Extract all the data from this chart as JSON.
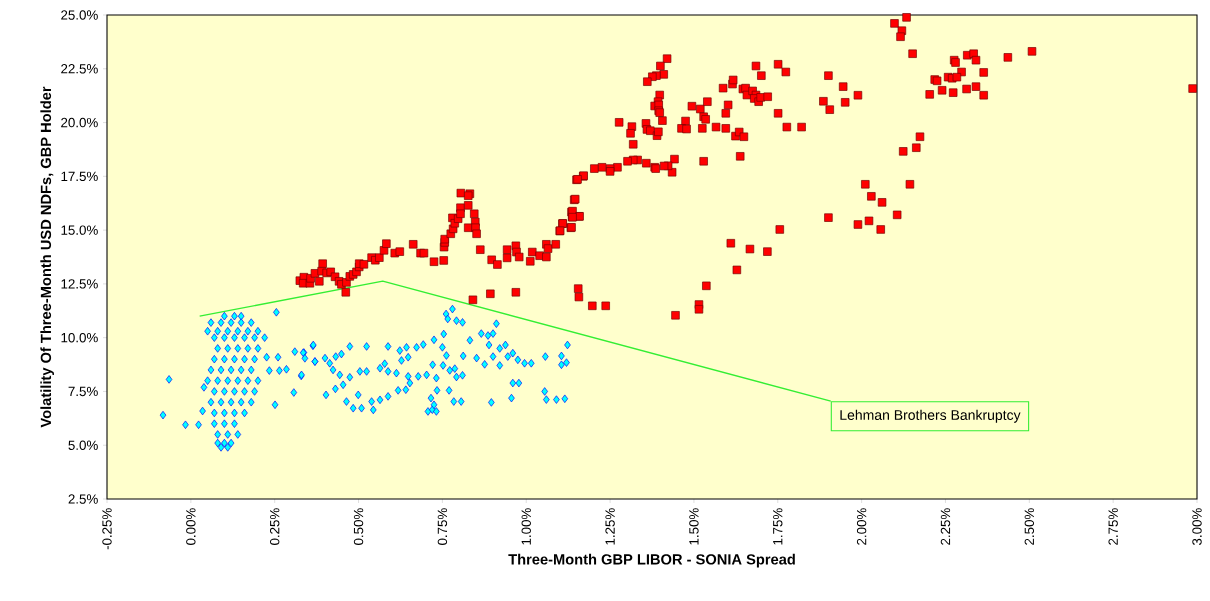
{
  "chart_data": {
    "type": "scatter",
    "xlabel": "Three-Month GBP LIBOR - SONIA Spread",
    "ylabel": "Volatility Of Three-Month USD NDFs, GBP Holder",
    "xlim": [
      -0.25,
      3.0
    ],
    "ylim": [
      2.5,
      25.0
    ],
    "xticks": [
      {
        "value": -0.25,
        "label": "-0.25%"
      },
      {
        "value": 0,
        "label": "0.00%"
      },
      {
        "value": 0.25,
        "label": "0.25%"
      },
      {
        "value": 0.5,
        "label": "0.50%"
      },
      {
        "value": 0.75,
        "label": "0.75%"
      },
      {
        "value": 1.0,
        "label": "1.00%"
      },
      {
        "value": 1.25,
        "label": "1.25%"
      },
      {
        "value": 1.5,
        "label": "1.50%"
      },
      {
        "value": 1.75,
        "label": "1.75%"
      },
      {
        "value": 2.0,
        "label": "2.00%"
      },
      {
        "value": 2.25,
        "label": "2.25%"
      },
      {
        "value": 2.5,
        "label": "2.50%"
      },
      {
        "value": 2.75,
        "label": "2.75%"
      },
      {
        "value": 3.0,
        "label": "3.00%"
      }
    ],
    "yticks": [
      {
        "value": 2.5,
        "label": "2.5%"
      },
      {
        "value": 5.0,
        "label": "5.0%"
      },
      {
        "value": 7.5,
        "label": "7.5%"
      },
      {
        "value": 10.0,
        "label": "10.0%"
      },
      {
        "value": 12.5,
        "label": "12.5%"
      },
      {
        "value": 15.0,
        "label": "15.0%"
      },
      {
        "value": 17.5,
        "label": "17.5%"
      },
      {
        "value": 20.0,
        "label": "20.0%"
      },
      {
        "value": 22.5,
        "label": "22.5%"
      },
      {
        "value": 25.0,
        "label": "25.0%"
      }
    ],
    "annotations": [
      "Lehman Brothers Bankruptcy"
    ],
    "series": [
      {
        "color": "#ff0000",
        "marker": "square",
        "x": [
          0.325,
          0.337,
          0.335,
          0.355,
          0.357,
          0.37,
          0.383,
          0.393,
          0.39,
          0.405,
          0.417,
          0.43,
          0.442,
          0.449,
          0.462,
          0.464,
          0.474,
          0.484,
          0.494,
          0.502,
          0.502,
          0.516,
          0.539,
          0.55,
          0.562,
          0.576,
          0.583,
          0.608,
          0.623,
          0.663,
          0.685,
          0.695,
          0.725,
          0.754,
          0.755,
          0.757,
          0.757,
          0.775,
          0.782,
          0.78,
          0.787,
          0.797,
          0.804,
          0.804,
          0.805,
          0.832,
          0.827,
          0.827,
          0.845,
          0.848,
          0.827,
          0.849,
          0.852,
          0.863,
          0.841,
          0.893,
          0.897,
          0.914,
          0.943,
          0.943,
          0.969,
          0.971,
          0.979,
          0.969,
          1.012,
          1.018,
          1.04,
          1.06,
          1.065,
          1.06,
          1.088,
          1.1,
          1.108,
          1.133,
          1.135,
          1.137,
          1.157,
          1.143,
          1.15,
          1.17,
          1.155,
          1.157,
          1.197,
          1.237,
          1.42,
          1.4,
          1.41,
          1.388,
          1.376,
          1.361,
          1.398,
          1.393,
          1.383,
          1.395,
          1.395,
          1.398,
          1.406,
          1.277,
          1.315,
          1.311,
          1.319,
          1.357,
          1.36,
          1.37,
          1.39,
          1.394,
          1.475,
          1.463,
          1.478,
          1.494,
          1.519,
          1.54,
          1.529,
          1.535,
          1.525,
          1.566,
          1.595,
          1.602,
          1.595,
          1.587,
          1.615,
          1.617,
          1.646,
          1.654,
          1.658,
          1.675,
          1.685,
          1.68,
          1.693,
          1.699,
          1.72,
          1.685,
          1.701,
          1.751,
          1.774,
          1.751,
          1.777,
          1.821,
          1.624,
          1.635,
          1.649,
          1.638,
          1.529,
          1.901,
          1.945,
          1.989,
          1.886,
          1.905,
          1.951,
          1.442,
          1.435,
          1.423,
          1.411,
          1.383,
          1.386,
          1.358,
          1.332,
          1.319,
          1.302,
          1.272,
          1.25,
          1.25,
          1.226,
          1.203,
          1.171,
          1.153,
          1.146,
          1.138,
          1.159,
          1.138,
          1.109,
          1.135,
          1.101,
          1.445,
          1.515,
          1.515,
          1.537,
          1.628,
          1.61,
          1.667,
          1.719,
          1.756,
          1.901,
          1.989,
          2.022,
          2.011,
          2.029,
          2.134,
          2.098,
          2.12,
          2.116,
          2.152,
          2.174,
          2.163,
          2.124,
          2.061,
          2.144,
          2.106,
          2.057,
          2.276,
          2.28,
          2.315,
          2.334,
          2.341,
          2.298,
          2.364,
          2.218,
          2.225,
          2.258,
          2.27,
          2.284,
          2.203,
          2.24,
          2.273,
          2.313,
          2.341,
          2.364,
          2.436,
          2.508,
          2.987
        ],
        "values": [
          12.65,
          12.81,
          12.53,
          12.53,
          12.76,
          12.99,
          12.62,
          13.44,
          13.09,
          13.01,
          13.06,
          12.83,
          12.62,
          12.48,
          12.11,
          12.57,
          12.85,
          12.94,
          13.06,
          13.29,
          13.44,
          13.41,
          13.72,
          13.6,
          13.72,
          14.06,
          14.37,
          13.93,
          14.0,
          14.34,
          13.93,
          13.93,
          13.53,
          13.59,
          14.21,
          14.43,
          14.58,
          14.83,
          15.06,
          15.57,
          15.32,
          15.53,
          16.04,
          15.76,
          16.72,
          16.69,
          16.6,
          16.15,
          15.76,
          15.38,
          15.11,
          15.11,
          14.83,
          14.09,
          11.76,
          12.04,
          13.62,
          13.4,
          14.09,
          13.71,
          14.27,
          13.98,
          13.75,
          12.11,
          13.55,
          13.98,
          13.81,
          14.34,
          14.14,
          13.75,
          14.34,
          14.96,
          15.3,
          15.11,
          15.84,
          15.61,
          15.64,
          16.41,
          17.34,
          17.5,
          12.28,
          11.89,
          11.48,
          11.48,
          22.97,
          22.63,
          22.24,
          22.18,
          22.13,
          21.9,
          21.28,
          20.97,
          20.77,
          20.82,
          20.55,
          20.46,
          20.09,
          20.01,
          19.81,
          19.5,
          18.99,
          19.96,
          19.68,
          19.62,
          19.39,
          19.57,
          20.07,
          19.73,
          19.7,
          20.76,
          20.63,
          20.97,
          20.27,
          20.15,
          19.73,
          19.79,
          19.73,
          20.82,
          20.43,
          21.6,
          21.79,
          21.98,
          21.56,
          21.6,
          21.28,
          21.47,
          21.28,
          21.12,
          20.97,
          21.17,
          21.2,
          22.63,
          22.18,
          22.71,
          22.35,
          20.43,
          19.79,
          19.79,
          19.37,
          19.56,
          19.34,
          18.43,
          18.2,
          22.18,
          21.67,
          21.27,
          20.99,
          20.6,
          20.94,
          18.3,
          17.69,
          17.99,
          17.98,
          17.92,
          17.86,
          18.11,
          18.26,
          18.26,
          18.2,
          17.92,
          17.86,
          17.73,
          17.92,
          17.86,
          17.53,
          17.36,
          16.44,
          15.88,
          15.64,
          15.6,
          15.31,
          15.13,
          14.97,
          11.04,
          11.54,
          11.32,
          12.41,
          13.15,
          14.39,
          14.12,
          14.0,
          15.03,
          15.58,
          15.26,
          15.43,
          17.13,
          16.57,
          24.89,
          24.61,
          24.27,
          23.99,
          23.2,
          19.34,
          18.83,
          18.66,
          16.29,
          17.13,
          15.71,
          15.03,
          22.9,
          22.79,
          23.13,
          23.2,
          22.9,
          22.35,
          22.33,
          22.0,
          21.94,
          22.11,
          22.06,
          22.11,
          21.31,
          21.5,
          21.39,
          21.56,
          21.67,
          21.27,
          23.03,
          23.31,
          21.58
        ]
      },
      {
        "color": "#00ffff",
        "marker": "diamond",
        "x": [
          -0.065,
          -0.083,
          -0.016,
          0.023,
          0.035,
          0.039,
          0.255,
          0.226,
          0.26,
          0.234,
          0.264,
          0.285,
          0.329,
          0.307,
          0.251,
          0.31,
          0.337,
          0.364,
          0.37,
          0.1,
          0.13,
          0.15,
          0.06,
          0.09,
          0.12,
          0.15,
          0.18,
          0.05,
          0.08,
          0.11,
          0.14,
          0.17,
          0.2,
          0.07,
          0.1,
          0.13,
          0.16,
          0.19,
          0.22,
          0.08,
          0.11,
          0.14,
          0.17,
          0.2,
          0.07,
          0.1,
          0.13,
          0.16,
          0.19,
          0.06,
          0.09,
          0.12,
          0.15,
          0.18,
          0.05,
          0.08,
          0.11,
          0.14,
          0.17,
          0.2,
          0.07,
          0.1,
          0.13,
          0.16,
          0.19,
          0.06,
          0.09,
          0.12,
          0.15,
          0.18,
          0.07,
          0.1,
          0.13,
          0.16,
          0.07,
          0.1,
          0.13,
          0.08,
          0.11,
          0.14,
          0.08,
          0.1,
          0.12,
          0.09,
          0.11,
          0.335,
          0.34,
          0.365,
          0.37,
          0.33,
          0.403,
          0.431,
          0.4,
          0.414,
          0.424,
          0.432,
          0.449,
          0.444,
          0.454,
          0.474,
          0.474,
          0.504,
          0.524,
          0.524,
          0.464,
          0.484,
          0.499,
          0.509,
          0.544,
          0.539,
          0.564,
          0.588,
          0.618,
          0.641,
          0.564,
          0.578,
          0.588,
          0.613,
          0.588,
          0.623,
          0.643,
          0.648,
          0.628,
          0.673,
          0.693,
          0.648,
          0.653,
          0.678,
          0.703,
          0.721,
          0.725,
          0.732,
          0.734,
          0.716,
          0.707,
          0.72,
          0.725,
          0.732,
          0.75,
          0.754,
          0.761,
          0.766,
          0.78,
          0.792,
          0.81,
          0.762,
          0.752,
          0.772,
          0.787,
          0.792,
          0.81,
          0.812,
          0.77,
          0.784,
          0.806,
          0.832,
          0.852,
          0.866,
          0.886,
          0.901,
          0.911,
          0.889,
          0.876,
          0.901,
          0.921,
          0.921,
          0.938,
          0.945,
          0.96,
          0.975,
          0.995,
          1.015,
          0.96,
          0.978,
          0.956,
          0.896,
          1.057,
          1.105,
          1.105,
          1.123,
          1.12,
          1.055,
          1.06,
          1.09,
          1.115
        ],
        "values": [
          8.06,
          6.4,
          5.95,
          5.95,
          6.59,
          7.69,
          11.18,
          9.09,
          9.09,
          8.47,
          8.47,
          8.53,
          8.22,
          7.45,
          6.88,
          9.35,
          9.31,
          9.62,
          8.89,
          11.0,
          11.0,
          11.0,
          10.7,
          10.7,
          10.7,
          10.7,
          10.7,
          10.3,
          10.3,
          10.3,
          10.3,
          10.3,
          10.3,
          10.0,
          10.0,
          10.0,
          10.0,
          10.0,
          10.0,
          9.5,
          9.5,
          9.5,
          9.5,
          9.5,
          9.0,
          9.0,
          9.0,
          9.0,
          9.0,
          8.5,
          8.5,
          8.5,
          8.5,
          8.5,
          8.0,
          8.0,
          8.0,
          8.0,
          8.0,
          8.0,
          7.5,
          7.5,
          7.5,
          7.5,
          7.5,
          7.0,
          7.0,
          7.0,
          7.0,
          7.0,
          6.5,
          6.5,
          6.5,
          6.5,
          6.0,
          6.0,
          6.0,
          5.5,
          5.5,
          5.5,
          5.1,
          5.1,
          5.1,
          4.9,
          4.9,
          9.3,
          9.04,
          9.66,
          8.89,
          8.27,
          7.34,
          7.62,
          9.05,
          8.81,
          8.5,
          9.12,
          9.24,
          8.27,
          7.81,
          9.59,
          8.16,
          8.43,
          8.43,
          9.59,
          7.03,
          6.72,
          7.34,
          6.72,
          6.64,
          7.03,
          7.11,
          7.27,
          7.55,
          7.58,
          8.58,
          8.79,
          8.43,
          8.35,
          9.59,
          9.4,
          9.55,
          9.09,
          8.94,
          9.55,
          9.68,
          8.2,
          7.89,
          8.2,
          8.27,
          8.74,
          9.9,
          8.12,
          7.55,
          7.19,
          6.57,
          6.65,
          6.88,
          6.57,
          9.55,
          10.17,
          11.1,
          10.87,
          11.33,
          10.79,
          10.71,
          9.17,
          8.71,
          8.48,
          8.56,
          8.17,
          8.25,
          9.15,
          7.55,
          7.03,
          7.03,
          9.88,
          9.05,
          10.19,
          10.1,
          10.19,
          10.65,
          9.66,
          8.76,
          9.12,
          9.5,
          8.71,
          9.66,
          9.12,
          9.28,
          8.97,
          8.81,
          8.81,
          7.89,
          7.89,
          7.19,
          6.99,
          9.12,
          9.15,
          8.74,
          9.66,
          8.84,
          7.5,
          7.12,
          7.12,
          7.16
        ]
      }
    ]
  }
}
